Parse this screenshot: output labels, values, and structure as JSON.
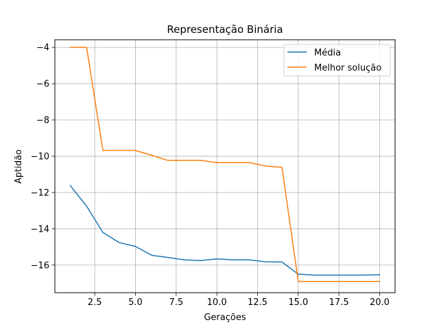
{
  "chart_data": {
    "type": "line",
    "title": "Representação Binária",
    "xlabel": "Gerações",
    "ylabel": "Aptidão",
    "xlim": [
      0.05,
      20.95
    ],
    "ylim": [
      -17.52,
      -3.58
    ],
    "xticks": [
      2.5,
      5.0,
      7.5,
      10.0,
      12.5,
      15.0,
      17.5,
      20.0
    ],
    "xtick_labels": [
      "2.5",
      "5.0",
      "7.5",
      "10.0",
      "12.5",
      "15.0",
      "17.5",
      "20.0"
    ],
    "yticks": [
      -16,
      -14,
      -12,
      -10,
      -8,
      -6,
      -4
    ],
    "ytick_labels": [
      "−16",
      "−14",
      "−12",
      "−10",
      "−8",
      "−6",
      "−4"
    ],
    "grid": true,
    "legend_position": "top-right",
    "x": [
      1,
      2,
      3,
      4,
      5,
      6,
      7,
      8,
      9,
      10,
      11,
      12,
      13,
      14,
      15,
      16,
      17,
      18,
      19,
      20
    ],
    "series": [
      {
        "name": "Média",
        "color": "#1f77b4",
        "values": [
          -11.62,
          -12.75,
          -14.2,
          -14.76,
          -14.97,
          -15.46,
          -15.58,
          -15.71,
          -15.75,
          -15.66,
          -15.71,
          -15.71,
          -15.82,
          -15.83,
          -16.5,
          -16.55,
          -16.55,
          -16.55,
          -16.55,
          -16.53
        ]
      },
      {
        "name": "Melhor solução",
        "color": "#ff7f0e",
        "values": [
          -4.0,
          -4.0,
          -9.68,
          -9.68,
          -9.68,
          -9.95,
          -10.23,
          -10.23,
          -10.23,
          -10.35,
          -10.35,
          -10.35,
          -10.54,
          -10.61,
          -16.9,
          -16.9,
          -16.9,
          -16.9,
          -16.9,
          -16.9
        ]
      }
    ]
  }
}
